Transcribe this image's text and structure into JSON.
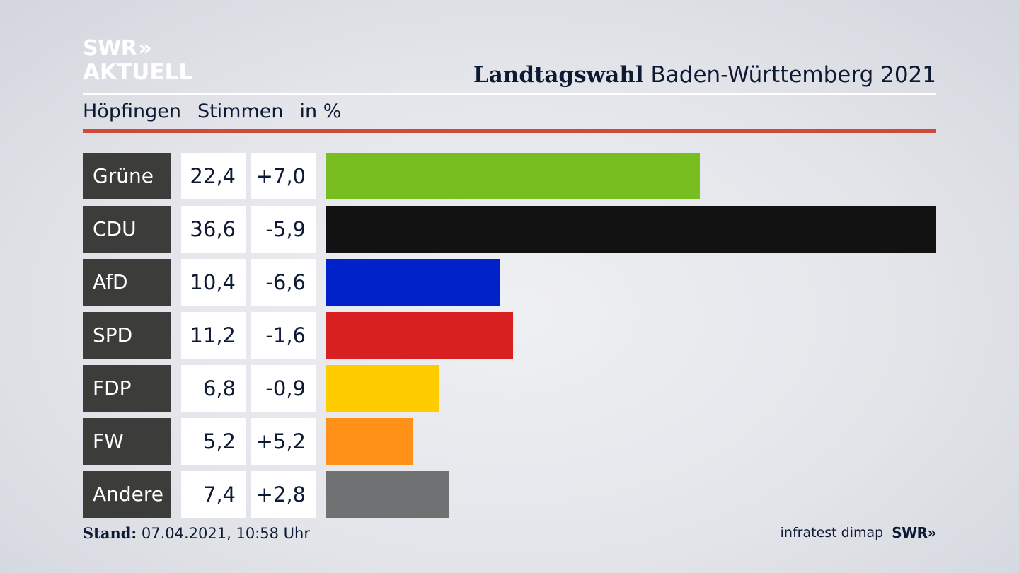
{
  "logo": {
    "line1": "SWR",
    "chevrons": "»",
    "line2": "AKTUELL"
  },
  "header": {
    "title_bold": "Landtagswahl",
    "title_rest": "Baden-Württemberg 2021",
    "location": "Höpfingen",
    "measure": "Stimmen",
    "unit": "in %"
  },
  "chart_data": {
    "type": "bar",
    "orientation": "horizontal",
    "title": "Landtagswahl Baden-Württemberg 2021",
    "subtitle": "Höpfingen Stimmen in %",
    "categories": [
      "Grüne",
      "CDU",
      "AfD",
      "SPD",
      "FDP",
      "FW",
      "Andere"
    ],
    "values": [
      22.4,
      36.6,
      10.4,
      11.2,
      6.8,
      5.2,
      7.4
    ],
    "value_labels": [
      "22,4",
      "36,6",
      "10,4",
      "11,2",
      "6,8",
      "5,2",
      "7,4"
    ],
    "changes": [
      7.0,
      -5.9,
      -6.6,
      -1.6,
      -0.9,
      5.2,
      2.8
    ],
    "change_labels": [
      "+7,0",
      "-5,9",
      "-6,6",
      "-1,6",
      "-0,9",
      "+5,2",
      "+2,8"
    ],
    "colors": [
      "#78be20",
      "#121212",
      "#0022c8",
      "#d82020",
      "#ffcc00",
      "#ff9018",
      "#707172"
    ],
    "xlim": [
      0,
      36.6
    ],
    "grid": false
  },
  "footer": {
    "stand_label": "Stand:",
    "stand_value": "07.04.2021, 10:58 Uhr",
    "source": "infratest dimap",
    "brand": "SWR",
    "brand_chevrons": "»"
  }
}
